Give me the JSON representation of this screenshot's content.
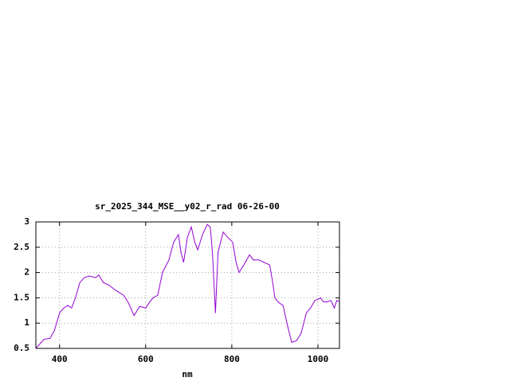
{
  "chart_data": {
    "type": "line",
    "title": "sr_2025_344_MSE__y02_r_rad 06-26-00",
    "x_label": "nm",
    "x": [
      345,
      364,
      378,
      388,
      400,
      410,
      419,
      428,
      437,
      447,
      458,
      469,
      484,
      491,
      502,
      515,
      530,
      549,
      560,
      573,
      586,
      600,
      608,
      617,
      628,
      639,
      654,
      665,
      676,
      682,
      688,
      697,
      706,
      714,
      721,
      732,
      743,
      750,
      755,
      762,
      768,
      780,
      790,
      802,
      810,
      817,
      828,
      841,
      850,
      863,
      875,
      888,
      895,
      900,
      910,
      919,
      928,
      939,
      950,
      961,
      973,
      983,
      993,
      1000,
      1006,
      1013,
      1021,
      1030,
      1038,
      1044,
      1050
    ],
    "series": [
      {
        "name": "sr_2025_344_MSE__y02_r_rad",
        "color": "#9400d3",
        "values": [
          0.5,
          0.68,
          0.7,
          0.85,
          1.2,
          1.3,
          1.35,
          1.3,
          1.5,
          1.8,
          1.9,
          1.93,
          1.9,
          1.95,
          1.8,
          1.75,
          1.65,
          1.55,
          1.4,
          1.15,
          1.33,
          1.3,
          1.4,
          1.5,
          1.55,
          2.0,
          2.25,
          2.6,
          2.75,
          2.4,
          2.2,
          2.7,
          2.9,
          2.6,
          2.45,
          2.75,
          2.95,
          2.9,
          2.4,
          1.2,
          2.4,
          2.8,
          2.7,
          2.6,
          2.2,
          2.0,
          2.15,
          2.35,
          2.25,
          2.25,
          2.2,
          2.15,
          1.8,
          1.5,
          1.4,
          1.35,
          1.0,
          0.62,
          0.65,
          0.8,
          1.2,
          1.3,
          1.45,
          1.47,
          1.5,
          1.42,
          1.42,
          1.45,
          1.3,
          1.45,
          1.42
        ]
      }
    ],
    "xlim": [
      345,
      1050
    ],
    "ylim": [
      0.5,
      3
    ],
    "xticks": [
      400,
      600,
      800,
      1000
    ],
    "yticks": [
      0.5,
      1,
      1.5,
      2,
      2.5,
      3
    ],
    "grid": true
  }
}
